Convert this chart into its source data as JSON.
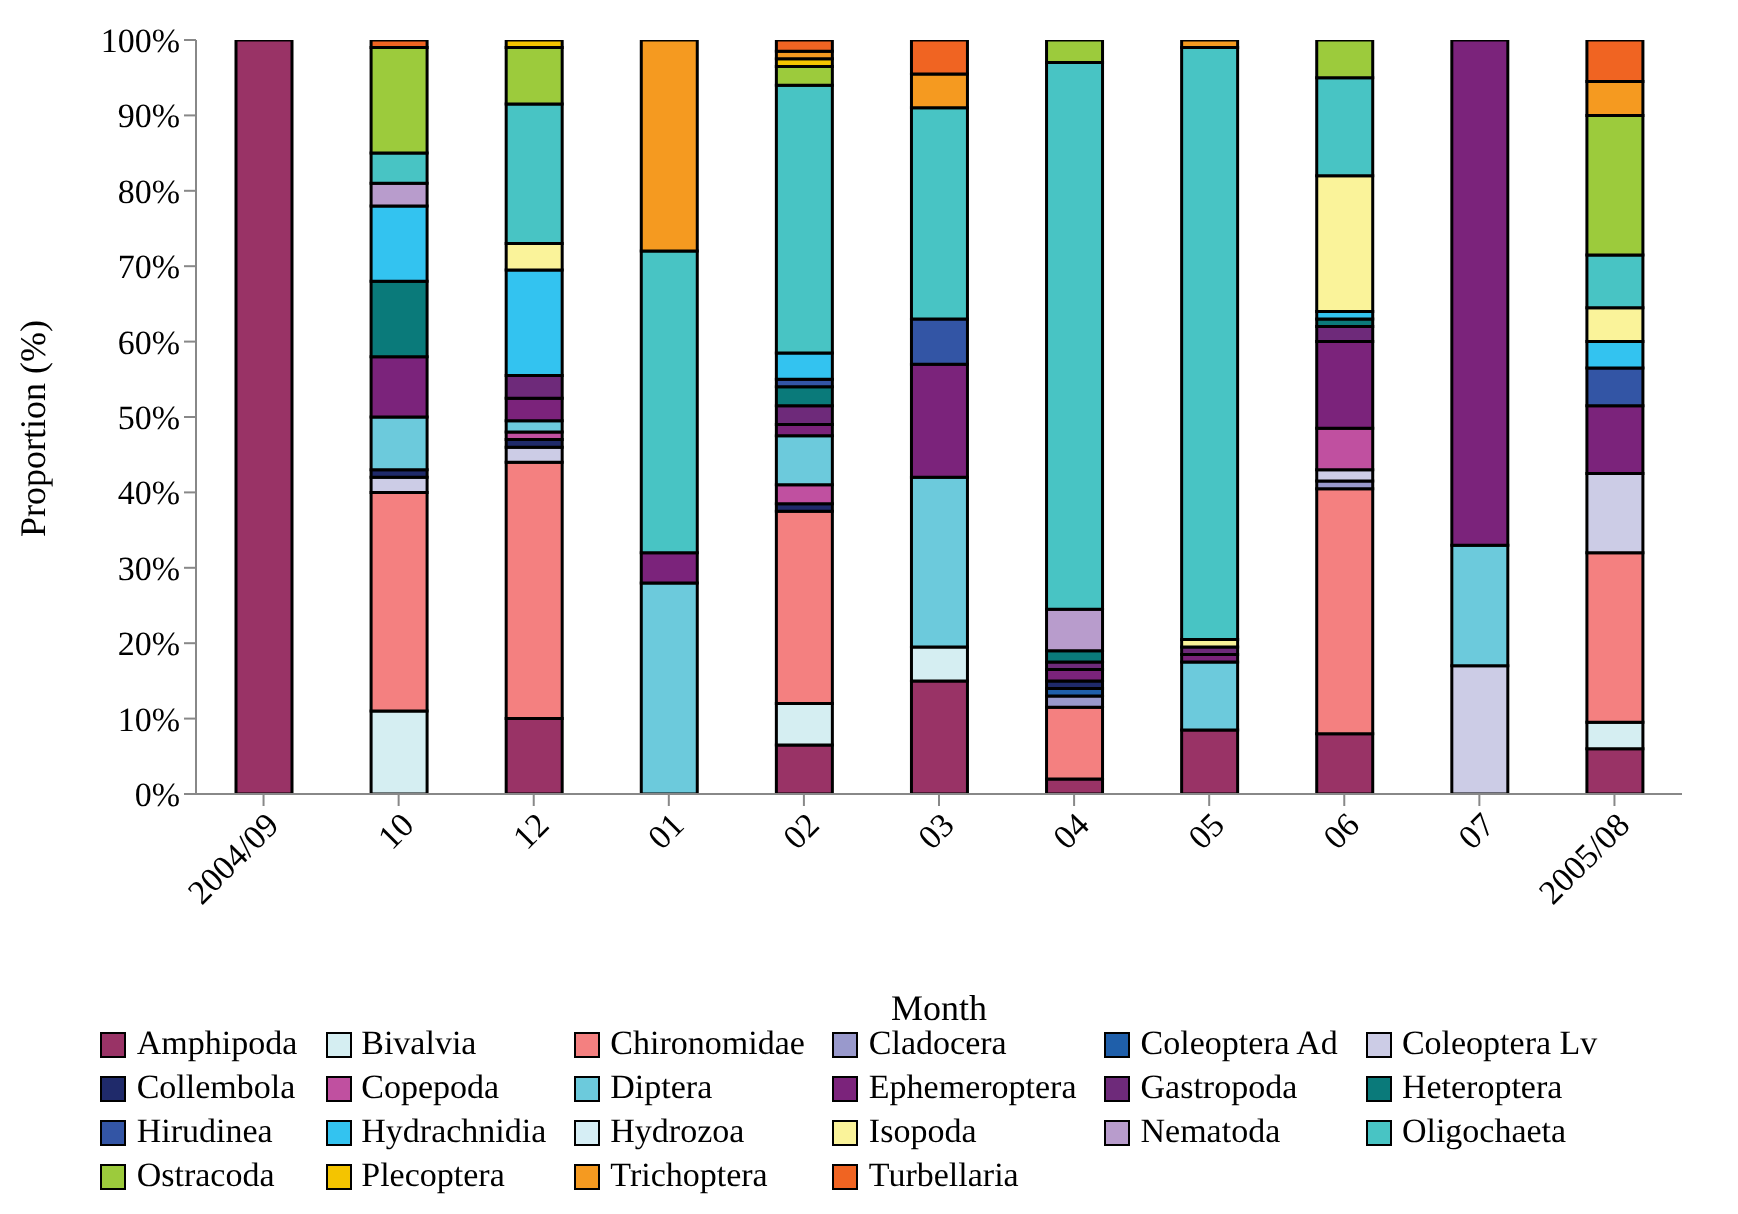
{
  "chart_data": {
    "type": "bar",
    "stacked": true,
    "xlabel": "Month",
    "ylabel": "Proportion (%)",
    "categories": [
      "2004/09",
      "10",
      "12",
      "01",
      "02",
      "03",
      "04",
      "05",
      "06",
      "07",
      "2005/08"
    ],
    "ylim": [
      0,
      100
    ],
    "yticks": [
      {
        "value": 0,
        "label": "0%"
      },
      {
        "value": 10,
        "label": "10%"
      },
      {
        "value": 20,
        "label": "20%"
      },
      {
        "value": 30,
        "label": "30%"
      },
      {
        "value": 40,
        "label": "40%"
      },
      {
        "value": 50,
        "label": "50%"
      },
      {
        "value": 60,
        "label": "60%"
      },
      {
        "value": 70,
        "label": "70%"
      },
      {
        "value": 80,
        "label": "80%"
      },
      {
        "value": 90,
        "label": "90%"
      },
      {
        "value": 100,
        "label": "100%"
      }
    ],
    "grid": false,
    "legend": "bottom",
    "series": [
      {
        "name": "Amphipoda",
        "color": "#993366",
        "values": [
          100,
          0,
          10,
          0,
          6.5,
          15,
          2,
          8.5,
          8,
          0,
          6
        ]
      },
      {
        "name": "Bivalvia",
        "color": "#d5eef2",
        "values": [
          0,
          11,
          0,
          0,
          5.5,
          4.5,
          0,
          0,
          0,
          0,
          3.5
        ]
      },
      {
        "name": "Chironomidae",
        "color": "#f48080",
        "values": [
          0,
          29,
          34,
          0,
          25.5,
          0,
          9.5,
          0,
          32.5,
          0,
          22.5
        ]
      },
      {
        "name": "Cladocera",
        "color": "#9999cc",
        "values": [
          0,
          0,
          0,
          0,
          0,
          0,
          1.5,
          0,
          1,
          0,
          0
        ]
      },
      {
        "name": "Coleoptera Ad",
        "color": "#1f5faa",
        "values": [
          0,
          0,
          0,
          0,
          0,
          0,
          1,
          0,
          0,
          0,
          0
        ]
      },
      {
        "name": "Coleoptera Lv",
        "color": "#ccccE6",
        "values": [
          0,
          2,
          2,
          0,
          0,
          0,
          0,
          0,
          1.5,
          17,
          10.5
        ]
      },
      {
        "name": "Collembola",
        "color": "#1f2a6a",
        "values": [
          0,
          1,
          1,
          0,
          1,
          0,
          1,
          0,
          0,
          0,
          0
        ]
      },
      {
        "name": "Copepoda",
        "color": "#c050a0",
        "values": [
          0,
          0,
          1,
          0,
          2.5,
          0,
          0,
          0,
          5.5,
          0,
          0
        ]
      },
      {
        "name": "Diptera",
        "color": "#6ccadc",
        "values": [
          0,
          7,
          1.5,
          28,
          6.5,
          22.5,
          0,
          9,
          0,
          16,
          0
        ]
      },
      {
        "name": "Ephemeroptera",
        "color": "#7b237b",
        "values": [
          0,
          8,
          3,
          4,
          1.5,
          15,
          1.5,
          1,
          11.5,
          67,
          9
        ]
      },
      {
        "name": "Gastropoda",
        "color": "#6e2a7a",
        "values": [
          0,
          0,
          3,
          0,
          2.5,
          0,
          1,
          1,
          2,
          0,
          0
        ]
      },
      {
        "name": "Heteroptera",
        "color": "#0a7a7a",
        "values": [
          0,
          10,
          0,
          0,
          2.5,
          0,
          1.5,
          0,
          1,
          0,
          0
        ]
      },
      {
        "name": "Hirudinea",
        "color": "#3355a5",
        "values": [
          0,
          0,
          0,
          0,
          1,
          6,
          0,
          0,
          0,
          0,
          5
        ]
      },
      {
        "name": "Hydrachnidia",
        "color": "#33c3f0",
        "values": [
          0,
          10,
          14,
          0,
          3.5,
          0,
          0,
          0,
          1,
          0,
          3.5
        ]
      },
      {
        "name": "Hydrozoa",
        "color": "#d6eef5",
        "values": [
          0,
          0,
          0,
          0,
          0,
          0,
          0,
          0,
          0,
          0,
          0
        ]
      },
      {
        "name": "Isopoda",
        "color": "#faf39a",
        "values": [
          0,
          0,
          3.5,
          0,
          0,
          0,
          0,
          1,
          18,
          0,
          4.5
        ]
      },
      {
        "name": "Nematoda",
        "color": "#b89ccc",
        "values": [
          0,
          3,
          0,
          0,
          0,
          0,
          5.5,
          0,
          0,
          0,
          0
        ]
      },
      {
        "name": "Oligochaeta",
        "color": "#48c4c4",
        "values": [
          0,
          4,
          18.5,
          40,
          35.5,
          28,
          72.5,
          78.5,
          13,
          0,
          7
        ]
      },
      {
        "name": "Ostracoda",
        "color": "#9ccb3c",
        "values": [
          0,
          14,
          7.5,
          0,
          2.5,
          0,
          3,
          0,
          5,
          0,
          18.5
        ]
      },
      {
        "name": "Plecoptera",
        "color": "#f4c400",
        "values": [
          0,
          0,
          1,
          0,
          1,
          0,
          0,
          0,
          0,
          0,
          0
        ]
      },
      {
        "name": "Trichoptera",
        "color": "#f59a20",
        "values": [
          0,
          0,
          0,
          28,
          1,
          4.5,
          0,
          1,
          0,
          0,
          4.5
        ]
      },
      {
        "name": "Turbellaria",
        "color": "#f06422",
        "values": [
          0,
          1,
          0,
          0,
          1.5,
          4.5,
          0,
          0,
          0,
          0,
          5.5
        ]
      }
    ]
  }
}
